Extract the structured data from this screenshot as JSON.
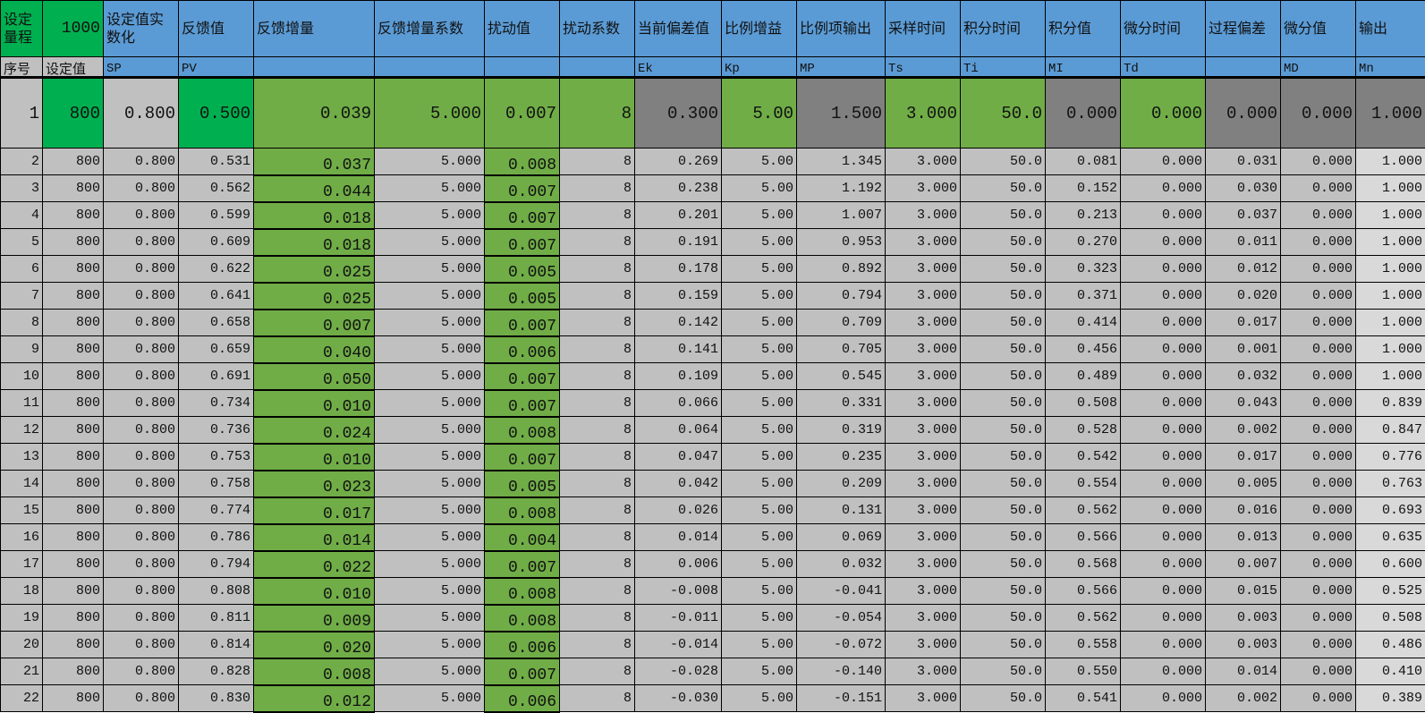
{
  "colors": {
    "header_blue": "#5b9bd5",
    "bright_green": "#00b050",
    "olive_green": "#70ad47",
    "gray": "#c0c0c0",
    "dark_gray": "#808080",
    "light_gray": "#d9d9d9"
  },
  "range": {
    "label": "设定量程",
    "value": "1000"
  },
  "headers": [
    "设定值实数化",
    "反馈值",
    "反馈增量",
    "反馈增量系数",
    "扰动值",
    "扰动系数",
    "当前偏差值",
    "比例增益",
    "比例项输出",
    "采样时间",
    "积分时间",
    "积分值",
    "微分时间",
    "过程偏差",
    "微分值",
    "输出"
  ],
  "subheaders": [
    "序号",
    "设定值",
    "SP",
    "PV",
    "",
    "",
    "",
    "",
    "Ek",
    "Kp",
    "MP",
    "Ts",
    "Ti",
    "MI",
    "Td",
    "",
    "MD",
    "Mn"
  ],
  "rows": [
    [
      "1",
      "800",
      "0.800",
      "0.500",
      "0.039",
      "5.000",
      "0.007",
      "8",
      "0.300",
      "5.00",
      "1.500",
      "3.000",
      "50.0",
      "0.000",
      "0.000",
      "0.000",
      "0.000",
      "1.000"
    ],
    [
      "2",
      "800",
      "0.800",
      "0.531",
      "0.037",
      "5.000",
      "0.008",
      "8",
      "0.269",
      "5.00",
      "1.345",
      "3.000",
      "50.0",
      "0.081",
      "0.000",
      "0.031",
      "0.000",
      "1.000"
    ],
    [
      "3",
      "800",
      "0.800",
      "0.562",
      "0.044",
      "5.000",
      "0.007",
      "8",
      "0.238",
      "5.00",
      "1.192",
      "3.000",
      "50.0",
      "0.152",
      "0.000",
      "0.030",
      "0.000",
      "1.000"
    ],
    [
      "4",
      "800",
      "0.800",
      "0.599",
      "0.018",
      "5.000",
      "0.007",
      "8",
      "0.201",
      "5.00",
      "1.007",
      "3.000",
      "50.0",
      "0.213",
      "0.000",
      "0.037",
      "0.000",
      "1.000"
    ],
    [
      "5",
      "800",
      "0.800",
      "0.609",
      "0.018",
      "5.000",
      "0.007",
      "8",
      "0.191",
      "5.00",
      "0.953",
      "3.000",
      "50.0",
      "0.270",
      "0.000",
      "0.011",
      "0.000",
      "1.000"
    ],
    [
      "6",
      "800",
      "0.800",
      "0.622",
      "0.025",
      "5.000",
      "0.005",
      "8",
      "0.178",
      "5.00",
      "0.892",
      "3.000",
      "50.0",
      "0.323",
      "0.000",
      "0.012",
      "0.000",
      "1.000"
    ],
    [
      "7",
      "800",
      "0.800",
      "0.641",
      "0.025",
      "5.000",
      "0.005",
      "8",
      "0.159",
      "5.00",
      "0.794",
      "3.000",
      "50.0",
      "0.371",
      "0.000",
      "0.020",
      "0.000",
      "1.000"
    ],
    [
      "8",
      "800",
      "0.800",
      "0.658",
      "0.007",
      "5.000",
      "0.007",
      "8",
      "0.142",
      "5.00",
      "0.709",
      "3.000",
      "50.0",
      "0.414",
      "0.000",
      "0.017",
      "0.000",
      "1.000"
    ],
    [
      "9",
      "800",
      "0.800",
      "0.659",
      "0.040",
      "5.000",
      "0.006",
      "8",
      "0.141",
      "5.00",
      "0.705",
      "3.000",
      "50.0",
      "0.456",
      "0.000",
      "0.001",
      "0.000",
      "1.000"
    ],
    [
      "10",
      "800",
      "0.800",
      "0.691",
      "0.050",
      "5.000",
      "0.007",
      "8",
      "0.109",
      "5.00",
      "0.545",
      "3.000",
      "50.0",
      "0.489",
      "0.000",
      "0.032",
      "0.000",
      "1.000"
    ],
    [
      "11",
      "800",
      "0.800",
      "0.734",
      "0.010",
      "5.000",
      "0.007",
      "8",
      "0.066",
      "5.00",
      "0.331",
      "3.000",
      "50.0",
      "0.508",
      "0.000",
      "0.043",
      "0.000",
      "0.839"
    ],
    [
      "12",
      "800",
      "0.800",
      "0.736",
      "0.024",
      "5.000",
      "0.008",
      "8",
      "0.064",
      "5.00",
      "0.319",
      "3.000",
      "50.0",
      "0.528",
      "0.000",
      "0.002",
      "0.000",
      "0.847"
    ],
    [
      "13",
      "800",
      "0.800",
      "0.753",
      "0.010",
      "5.000",
      "0.007",
      "8",
      "0.047",
      "5.00",
      "0.235",
      "3.000",
      "50.0",
      "0.542",
      "0.000",
      "0.017",
      "0.000",
      "0.776"
    ],
    [
      "14",
      "800",
      "0.800",
      "0.758",
      "0.023",
      "5.000",
      "0.005",
      "8",
      "0.042",
      "5.00",
      "0.209",
      "3.000",
      "50.0",
      "0.554",
      "0.000",
      "0.005",
      "0.000",
      "0.763"
    ],
    [
      "15",
      "800",
      "0.800",
      "0.774",
      "0.017",
      "5.000",
      "0.008",
      "8",
      "0.026",
      "5.00",
      "0.131",
      "3.000",
      "50.0",
      "0.562",
      "0.000",
      "0.016",
      "0.000",
      "0.693"
    ],
    [
      "16",
      "800",
      "0.800",
      "0.786",
      "0.014",
      "5.000",
      "0.004",
      "8",
      "0.014",
      "5.00",
      "0.069",
      "3.000",
      "50.0",
      "0.566",
      "0.000",
      "0.013",
      "0.000",
      "0.635"
    ],
    [
      "17",
      "800",
      "0.800",
      "0.794",
      "0.022",
      "5.000",
      "0.007",
      "8",
      "0.006",
      "5.00",
      "0.032",
      "3.000",
      "50.0",
      "0.568",
      "0.000",
      "0.007",
      "0.000",
      "0.600"
    ],
    [
      "18",
      "800",
      "0.800",
      "0.808",
      "0.010",
      "5.000",
      "0.008",
      "8",
      "-0.008",
      "5.00",
      "-0.041",
      "3.000",
      "50.0",
      "0.566",
      "0.000",
      "0.015",
      "0.000",
      "0.525"
    ],
    [
      "19",
      "800",
      "0.800",
      "0.811",
      "0.009",
      "5.000",
      "0.008",
      "8",
      "-0.011",
      "5.00",
      "-0.054",
      "3.000",
      "50.0",
      "0.562",
      "0.000",
      "0.003",
      "0.000",
      "0.508"
    ],
    [
      "20",
      "800",
      "0.800",
      "0.814",
      "0.020",
      "5.000",
      "0.006",
      "8",
      "-0.014",
      "5.00",
      "-0.072",
      "3.000",
      "50.0",
      "0.558",
      "0.000",
      "0.003",
      "0.000",
      "0.486"
    ],
    [
      "21",
      "800",
      "0.800",
      "0.828",
      "0.008",
      "5.000",
      "0.007",
      "8",
      "-0.028",
      "5.00",
      "-0.140",
      "3.000",
      "50.0",
      "0.550",
      "0.000",
      "0.014",
      "0.000",
      "0.410"
    ],
    [
      "22",
      "800",
      "0.800",
      "0.830",
      "0.012",
      "5.000",
      "0.006",
      "8",
      "-0.030",
      "5.00",
      "-0.151",
      "3.000",
      "50.0",
      "0.541",
      "0.000",
      "0.002",
      "0.000",
      "0.389"
    ]
  ]
}
